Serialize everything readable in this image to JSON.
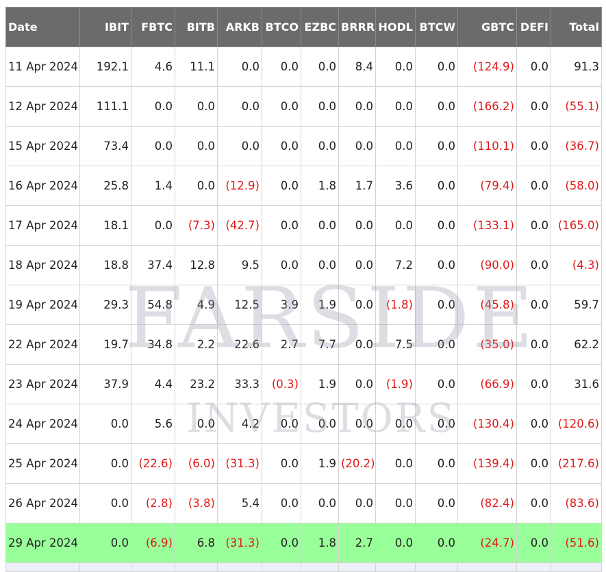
{
  "columns": [
    "Date",
    "IBIT",
    "FBTC",
    "BITB",
    "ARKB",
    "BTCO",
    "EZBC",
    "BRRR",
    "HODL",
    "BTCW",
    "GBTC",
    "DEFI",
    "Total"
  ],
  "rows": [
    [
      "11 Apr 2024",
      "192.1",
      "4.6",
      "11.1",
      "0.0",
      "0.0",
      "0.0",
      "8.4",
      "0.0",
      "0.0",
      "(124.9)",
      "0.0",
      "91.3"
    ],
    [
      "12 Apr 2024",
      "111.1",
      "0.0",
      "0.0",
      "0.0",
      "0.0",
      "0.0",
      "0.0",
      "0.0",
      "0.0",
      "(166.2)",
      "0.0",
      "(55.1)"
    ],
    [
      "15 Apr 2024",
      "73.4",
      "0.0",
      "0.0",
      "0.0",
      "0.0",
      "0.0",
      "0.0",
      "0.0",
      "0.0",
      "(110.1)",
      "0.0",
      "(36.7)"
    ],
    [
      "16 Apr 2024",
      "25.8",
      "1.4",
      "0.0",
      "(12.9)",
      "0.0",
      "1.8",
      "1.7",
      "3.6",
      "0.0",
      "(79.4)",
      "0.0",
      "(58.0)"
    ],
    [
      "17 Apr 2024",
      "18.1",
      "0.0",
      "(7.3)",
      "(42.7)",
      "0.0",
      "0.0",
      "0.0",
      "0.0",
      "0.0",
      "(133.1)",
      "0.0",
      "(165.0)"
    ],
    [
      "18 Apr 2024",
      "18.8",
      "37.4",
      "12.8",
      "9.5",
      "0.0",
      "0.0",
      "0.0",
      "7.2",
      "0.0",
      "(90.0)",
      "0.0",
      "(4.3)"
    ],
    [
      "19 Apr 2024",
      "29.3",
      "54.8",
      "4.9",
      "12.5",
      "3.9",
      "1.9",
      "0.0",
      "(1.8)",
      "0.0",
      "(45.8)",
      "0.0",
      "59.7"
    ],
    [
      "22 Apr 2024",
      "19.7",
      "34.8",
      "2.2",
      "22.6",
      "2.7",
      "7.7",
      "0.0",
      "7.5",
      "0.0",
      "(35.0)",
      "0.0",
      "62.2"
    ],
    [
      "23 Apr 2024",
      "37.9",
      "4.4",
      "23.2",
      "33.3",
      "(0.3)",
      "1.9",
      "0.0",
      "(1.9)",
      "0.0",
      "(66.9)",
      "0.0",
      "31.6"
    ],
    [
      "24 Apr 2024",
      "0.0",
      "5.6",
      "0.0",
      "4.2",
      "0.0",
      "0.0",
      "0.0",
      "0.0",
      "0.0",
      "(130.4)",
      "0.0",
      "(120.6)"
    ],
    [
      "25 Apr 2024",
      "0.0",
      "(22.6)",
      "(6.0)",
      "(31.3)",
      "0.0",
      "1.9",
      "(20.2)",
      "0.0",
      "0.0",
      "(139.4)",
      "0.0",
      "(217.6)"
    ],
    [
      "26 Apr 2024",
      "0.0",
      "(2.8)",
      "(3.8)",
      "5.4",
      "0.0",
      "0.0",
      "0.0",
      "0.0",
      "0.0",
      "(82.4)",
      "0.0",
      "(83.6)"
    ],
    [
      "29 Apr 2024",
      "0.0",
      "(6.9)",
      "6.8",
      "(31.3)",
      "0.0",
      "1.8",
      "2.7",
      "0.0",
      "0.0",
      "(24.7)",
      "0.0",
      "(51.6)"
    ]
  ],
  "highlight_row_index": 12,
  "colors": {
    "header_bg": "#6b6b6b",
    "header_text": "#ffffff",
    "negative": "#e01a1a",
    "highlight": "#99ff99"
  },
  "watermark": {
    "line1": "FARSIDE",
    "line2": "INVESTORS"
  }
}
